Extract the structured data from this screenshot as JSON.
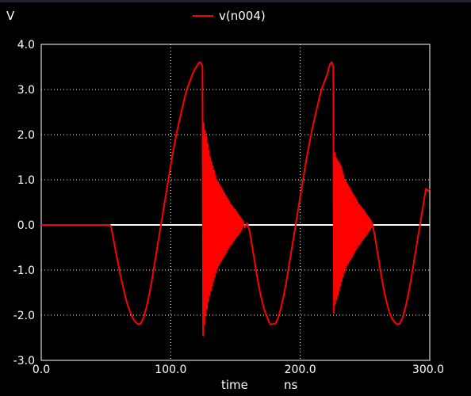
{
  "chart_data": {
    "type": "line",
    "title": "",
    "ylabel": "V",
    "xlabel": "time",
    "xunit": "ns",
    "xlim": [
      0,
      300
    ],
    "ylim": [
      -3,
      4
    ],
    "x_ticks": [
      0,
      100,
      200,
      300
    ],
    "x_tick_labels": [
      "0.0",
      "100.0",
      "200.0",
      "300.0"
    ],
    "y_ticks": [
      4,
      3,
      2,
      1,
      0,
      -1,
      -2,
      -3
    ],
    "y_tick_labels": [
      "4.0",
      "3.0",
      "2.0",
      "1.0",
      "0.0",
      "-1.0",
      "-2.0",
      "-3.0"
    ],
    "grid": true,
    "zero_line": true,
    "legend_position": "top-center",
    "series": [
      {
        "name": "v(n004)",
        "color": "#ff0000",
        "x": [
          0,
          53,
          54,
          55,
          57,
          59,
          61,
          63,
          65,
          67,
          69,
          71,
          73,
          75,
          76,
          77,
          79,
          81,
          83,
          85,
          87,
          89,
          91,
          93,
          95,
          97,
          99,
          101,
          103,
          105,
          107,
          109,
          111,
          113,
          115,
          117,
          119,
          121,
          122,
          123,
          124,
          124.5,
          125,
          125.5,
          126,
          126.5,
          127,
          127.5,
          128,
          128.5,
          129,
          129.5,
          130,
          130.5,
          131,
          131.5,
          132,
          132.5,
          133,
          133.5,
          134,
          134.5,
          135,
          135.5,
          136,
          136.5,
          137,
          137.5,
          138,
          138.5,
          139,
          139.5,
          140,
          140.5,
          141,
          141.5,
          142,
          142.5,
          143,
          143.5,
          144,
          144.5,
          145,
          145.5,
          146,
          146.5,
          147,
          147.5,
          148,
          148.5,
          149,
          149.5,
          150,
          150.5,
          151,
          151.5,
          152,
          152.5,
          153,
          153.5,
          154,
          154.5,
          155,
          155.5,
          157,
          159,
          161,
          163,
          165,
          167,
          169,
          171,
          173,
          175,
          176,
          177,
          179,
          181,
          183,
          185,
          187,
          189,
          191,
          193,
          195,
          197,
          199,
          201,
          203,
          205,
          207,
          209,
          211,
          213,
          215,
          217,
          219,
          221,
          222,
          223,
          224,
          224.5,
          225,
          225.5,
          226,
          226.5,
          227,
          227.5,
          228,
          228.5,
          229,
          229.5,
          230,
          230.5,
          231,
          231.5,
          232,
          232.5,
          233,
          233.5,
          234,
          234.5,
          235,
          235.5,
          236,
          236.5,
          237,
          237.5,
          238,
          238.5,
          239,
          239.5,
          240,
          240.5,
          241,
          241.5,
          242,
          242.5,
          243,
          243.5,
          244,
          244.5,
          245,
          245.5,
          246,
          246.5,
          247,
          247.5,
          248,
          248.5,
          249,
          249.5,
          250,
          250.5,
          251,
          251.5,
          252,
          252.5,
          253,
          253.5,
          254,
          254.5,
          255,
          255.5,
          257,
          259,
          261,
          263,
          265,
          267,
          269,
          271,
          273,
          275,
          276,
          277,
          279,
          281,
          283,
          285,
          287,
          289,
          291,
          293,
          295,
          297,
          299,
          300
        ],
        "y": [
          0,
          0,
          -0.05,
          -0.2,
          -0.5,
          -0.8,
          -1.1,
          -1.35,
          -1.6,
          -1.8,
          -1.95,
          -2.08,
          -2.16,
          -2.2,
          -2.2,
          -2.18,
          -2.05,
          -1.85,
          -1.6,
          -1.3,
          -0.95,
          -0.6,
          -0.25,
          0.1,
          0.45,
          0.8,
          1.15,
          1.5,
          1.8,
          2.1,
          2.35,
          2.6,
          2.85,
          3.05,
          3.2,
          3.35,
          3.47,
          3.56,
          3.6,
          3.6,
          3.55,
          3.5,
          -2.45,
          2.25,
          -2.2,
          2.1,
          -2.0,
          1.95,
          -1.85,
          1.8,
          -1.7,
          1.65,
          -1.55,
          1.5,
          -1.45,
          1.4,
          -1.35,
          1.3,
          -1.25,
          1.2,
          -1.15,
          1.1,
          -1.05,
          1.0,
          -0.95,
          0.95,
          -0.9,
          0.9,
          -0.85,
          0.85,
          -0.8,
          0.8,
          -0.75,
          0.75,
          -0.7,
          0.7,
          -0.65,
          0.65,
          -0.6,
          0.6,
          -0.55,
          0.55,
          -0.5,
          0.5,
          -0.45,
          0.45,
          -0.42,
          0.42,
          -0.38,
          0.38,
          -0.34,
          0.34,
          -0.3,
          0.3,
          -0.26,
          0.26,
          -0.22,
          0.22,
          -0.18,
          0.18,
          -0.14,
          0.14,
          -0.1,
          0.1,
          -0.06,
          0.04,
          -0.15,
          -0.5,
          -0.85,
          -1.2,
          -1.5,
          -1.75,
          -1.95,
          -2.08,
          -2.16,
          -2.2,
          -2.2,
          -2.18,
          -2.05,
          -1.85,
          -1.6,
          -1.3,
          -0.95,
          -0.6,
          -0.25,
          0.1,
          0.45,
          0.8,
          1.15,
          1.5,
          1.8,
          2.1,
          2.35,
          2.6,
          2.85,
          3.05,
          3.2,
          3.35,
          3.47,
          3.56,
          3.6,
          3.6,
          3.55,
          3.5,
          -1.95,
          1.6,
          -1.75,
          1.5,
          -1.65,
          1.45,
          -1.55,
          1.4,
          -1.45,
          1.35,
          -1.35,
          1.3,
          -1.25,
          1.2,
          -1.15,
          1.1,
          -1.05,
          1.0,
          -0.95,
          0.95,
          -0.9,
          0.9,
          -0.85,
          0.85,
          -0.8,
          0.8,
          -0.75,
          0.75,
          -0.7,
          0.7,
          -0.65,
          0.65,
          -0.6,
          0.6,
          -0.55,
          0.55,
          -0.5,
          0.5,
          -0.45,
          0.45,
          -0.42,
          0.42,
          -0.38,
          0.38,
          -0.34,
          0.34,
          -0.3,
          0.3,
          -0.26,
          0.26,
          -0.22,
          0.22,
          -0.18,
          0.18,
          -0.14,
          0.14,
          -0.1,
          0.1,
          -0.06,
          0.04,
          -0.15,
          -0.5,
          -0.85,
          -1.2,
          -1.5,
          -1.75,
          -1.95,
          -2.08,
          -2.16,
          -2.2,
          -2.2,
          -2.18,
          -2.05,
          -1.85,
          -1.6,
          -1.3,
          -0.95,
          -0.6,
          -0.25,
          0.1,
          0.45,
          0.8,
          0.75,
          0.8
        ]
      }
    ]
  }
}
